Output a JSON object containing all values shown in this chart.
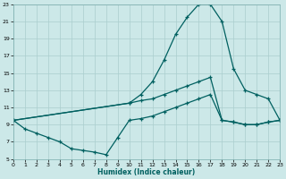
{
  "xlabel": "Humidex (Indice chaleur)",
  "bg_color": "#cce8e8",
  "grid_color": "#aacece",
  "line_color": "#006060",
  "xlim": [
    0,
    23
  ],
  "ylim": [
    5,
    23
  ],
  "xticks": [
    0,
    1,
    2,
    3,
    4,
    5,
    6,
    7,
    8,
    9,
    10,
    11,
    12,
    13,
    14,
    15,
    16,
    17,
    18,
    19,
    20,
    21,
    22,
    23
  ],
  "yticks": [
    5,
    7,
    9,
    11,
    13,
    15,
    17,
    19,
    21,
    23
  ],
  "line1_x": [
    0,
    10,
    11,
    12,
    13,
    14,
    15,
    16,
    17,
    18,
    19,
    20,
    21,
    22,
    23
  ],
  "line1_y": [
    9.5,
    11.5,
    12.5,
    14.0,
    16.5,
    19.5,
    21.5,
    23.0,
    23.0,
    21.0,
    15.5,
    13.0,
    12.5,
    12.0,
    9.5
  ],
  "line2_x": [
    0,
    1,
    2,
    3,
    4,
    5,
    6,
    7,
    8,
    9,
    10,
    11,
    12,
    13,
    14,
    15,
    16,
    17,
    18,
    19,
    20,
    21,
    22,
    23
  ],
  "line2_y": [
    9.5,
    8.5,
    8.0,
    7.5,
    7.0,
    6.2,
    6.0,
    5.8,
    5.5,
    7.5,
    9.5,
    9.7,
    10.0,
    10.5,
    11.0,
    11.5,
    12.0,
    12.5,
    9.5,
    9.3,
    9.0,
    9.0,
    9.3,
    9.5
  ],
  "line3_x": [
    0,
    10,
    11,
    12,
    13,
    14,
    15,
    16,
    17,
    18,
    19,
    20,
    21,
    22,
    23
  ],
  "line3_y": [
    9.5,
    11.5,
    11.8,
    12.0,
    12.5,
    13.0,
    13.5,
    14.0,
    14.5,
    9.5,
    9.3,
    9.0,
    9.0,
    9.3,
    9.5
  ]
}
